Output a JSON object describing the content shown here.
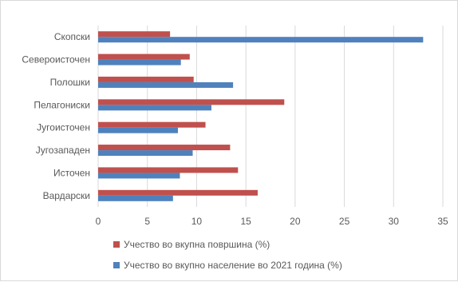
{
  "chart_data": {
    "type": "bar",
    "orientation": "horizontal",
    "categories": [
      "Скопски",
      "Североисточен",
      "Полошки",
      "Пелагониски",
      "Југоисточен",
      "Југозападен",
      "Источен",
      "Вардарски"
    ],
    "series": [
      {
        "name": "Учество во вкупна површина (%)",
        "color": "#c0504d",
        "values": [
          7.3,
          9.3,
          9.7,
          18.9,
          10.9,
          13.4,
          14.2,
          16.2
        ]
      },
      {
        "name": "Учество во вкупно население во 2021 година (%)",
        "color": "#4f81bd",
        "values": [
          33.0,
          8.4,
          13.7,
          11.5,
          8.1,
          9.6,
          8.3,
          7.6
        ]
      }
    ],
    "xlim": [
      0,
      35
    ],
    "xticks": [
      "0",
      "5",
      "10",
      "15",
      "20",
      "25",
      "30",
      "35"
    ],
    "grid": "vertical",
    "legend_position": "bottom"
  }
}
